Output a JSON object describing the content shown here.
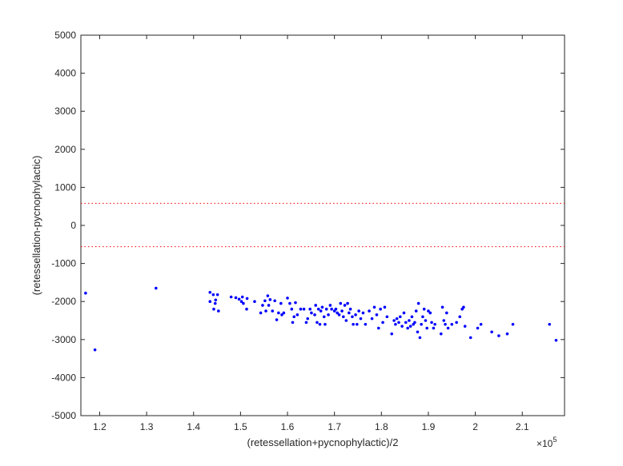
{
  "chart_data": {
    "type": "scatter",
    "xlabel": "(retessellation+pycnophylactic)/2",
    "ylabel": "(retessellation-pycnophylactic)",
    "x_exponent_label": "×10",
    "x_exponent_power": "5",
    "xlim": [
      116000,
      219000
    ],
    "ylim": [
      -5000,
      5000
    ],
    "xticks": [
      120000,
      130000,
      140000,
      150000,
      160000,
      170000,
      180000,
      190000,
      200000,
      210000
    ],
    "xtick_labels": [
      "1.2",
      "1.3",
      "1.4",
      "1.5",
      "1.6",
      "1.7",
      "1.8",
      "1.9",
      "2",
      "2.1"
    ],
    "yticks": [
      -5000,
      -4000,
      -3000,
      -2000,
      -1000,
      0,
      1000,
      2000,
      3000,
      4000,
      5000
    ],
    "ytick_labels": [
      "-5000",
      "-4000",
      "-3000",
      "-2000",
      "-1000",
      "0",
      "1000",
      "2000",
      "3000",
      "4000",
      "5000"
    ],
    "reference_lines": [
      580,
      -560
    ],
    "colors": {
      "points": "#0000ff",
      "reference": "#ff0000",
      "axis": "#262626"
    },
    "grid": false,
    "points": [
      [
        117000,
        -1780
      ],
      [
        119000,
        -3270
      ],
      [
        132000,
        -1650
      ],
      [
        143500,
        -1760
      ],
      [
        143500,
        -2000
      ],
      [
        144200,
        -1820
      ],
      [
        144300,
        -2200
      ],
      [
        144600,
        -2050
      ],
      [
        144700,
        -1960
      ],
      [
        145100,
        -1820
      ],
      [
        145300,
        -2250
      ],
      [
        148000,
        -1880
      ],
      [
        149000,
        -1900
      ],
      [
        149700,
        -1940
      ],
      [
        150200,
        -2000
      ],
      [
        150400,
        -1880
      ],
      [
        150600,
        -2050
      ],
      [
        151300,
        -2200
      ],
      [
        151400,
        -1920
      ],
      [
        153000,
        -2000
      ],
      [
        154300,
        -2300
      ],
      [
        154700,
        -2100
      ],
      [
        155200,
        -1980
      ],
      [
        155400,
        -2250
      ],
      [
        155800,
        -1850
      ],
      [
        156000,
        -2100
      ],
      [
        156300,
        -1950
      ],
      [
        156800,
        -2250
      ],
      [
        157300,
        -1980
      ],
      [
        157700,
        -2480
      ],
      [
        158100,
        -2300
      ],
      [
        158600,
        -2050
      ],
      [
        158800,
        -2350
      ],
      [
        159200,
        -2300
      ],
      [
        160000,
        -1910
      ],
      [
        160500,
        -2050
      ],
      [
        160900,
        -2200
      ],
      [
        161100,
        -2550
      ],
      [
        161400,
        -2400
      ],
      [
        161700,
        -2030
      ],
      [
        162100,
        -2350
      ],
      [
        162800,
        -2200
      ],
      [
        163500,
        -2200
      ],
      [
        164000,
        -2550
      ],
      [
        164300,
        -2450
      ],
      [
        164800,
        -2200
      ],
      [
        165100,
        -2300
      ],
      [
        165800,
        -2350
      ],
      [
        166000,
        -2100
      ],
      [
        166300,
        -2550
      ],
      [
        166600,
        -2200
      ],
      [
        166900,
        -2600
      ],
      [
        167100,
        -2250
      ],
      [
        167400,
        -2150
      ],
      [
        167800,
        -2400
      ],
      [
        168000,
        -2600
      ],
      [
        168300,
        -2200
      ],
      [
        168700,
        -2350
      ],
      [
        169100,
        -2100
      ],
      [
        169400,
        -2200
      ],
      [
        170000,
        -2250
      ],
      [
        170300,
        -2200
      ],
      [
        170600,
        -2300
      ],
      [
        171000,
        -2350
      ],
      [
        171300,
        -2050
      ],
      [
        171600,
        -2250
      ],
      [
        171900,
        -2400
      ],
      [
        172200,
        -2100
      ],
      [
        172500,
        -2500
      ],
      [
        172800,
        -2050
      ],
      [
        173100,
        -2300
      ],
      [
        173400,
        -2200
      ],
      [
        173800,
        -2400
      ],
      [
        174000,
        -2600
      ],
      [
        174500,
        -2350
      ],
      [
        174800,
        -2600
      ],
      [
        175200,
        -2250
      ],
      [
        175600,
        -2450
      ],
      [
        176100,
        -2300
      ],
      [
        176600,
        -2600
      ],
      [
        177400,
        -2250
      ],
      [
        178000,
        -2450
      ],
      [
        178500,
        -2150
      ],
      [
        179000,
        -2350
      ],
      [
        179400,
        -2700
      ],
      [
        179800,
        -2200
      ],
      [
        180300,
        -2550
      ],
      [
        180700,
        -2150
      ],
      [
        181200,
        -2400
      ],
      [
        182200,
        -2850
      ],
      [
        182700,
        -2500
      ],
      [
        183000,
        -2600
      ],
      [
        183300,
        -2450
      ],
      [
        183700,
        -2550
      ],
      [
        184000,
        -2400
      ],
      [
        184400,
        -2650
      ],
      [
        184800,
        -2300
      ],
      [
        185200,
        -2550
      ],
      [
        185600,
        -2700
      ],
      [
        185900,
        -2500
      ],
      [
        186200,
        -2650
      ],
      [
        186500,
        -2400
      ],
      [
        186800,
        -2600
      ],
      [
        187100,
        -2550
      ],
      [
        187400,
        -2250
      ],
      [
        187700,
        -2800
      ],
      [
        187900,
        -2050
      ],
      [
        188200,
        -2950
      ],
      [
        188500,
        -2600
      ],
      [
        188800,
        -2400
      ],
      [
        189100,
        -2200
      ],
      [
        189400,
        -2500
      ],
      [
        189700,
        -2700
      ],
      [
        190000,
        -2250
      ],
      [
        190400,
        -2300
      ],
      [
        190700,
        -2550
      ],
      [
        191100,
        -2700
      ],
      [
        191400,
        -2600
      ],
      [
        192700,
        -2850
      ],
      [
        193000,
        -2150
      ],
      [
        193300,
        -2500
      ],
      [
        193600,
        -2600
      ],
      [
        193900,
        -2300
      ],
      [
        194200,
        -2700
      ],
      [
        195000,
        -2600
      ],
      [
        196000,
        -2550
      ],
      [
        196700,
        -2400
      ],
      [
        197200,
        -2200
      ],
      [
        197500,
        -2150
      ],
      [
        197800,
        -2650
      ],
      [
        199000,
        -2950
      ],
      [
        200500,
        -2700
      ],
      [
        201200,
        -2600
      ],
      [
        203500,
        -2800
      ],
      [
        205000,
        -2900
      ],
      [
        206800,
        -2850
      ],
      [
        208000,
        -2600
      ],
      [
        215800,
        -2600
      ],
      [
        217200,
        -3020
      ]
    ]
  }
}
